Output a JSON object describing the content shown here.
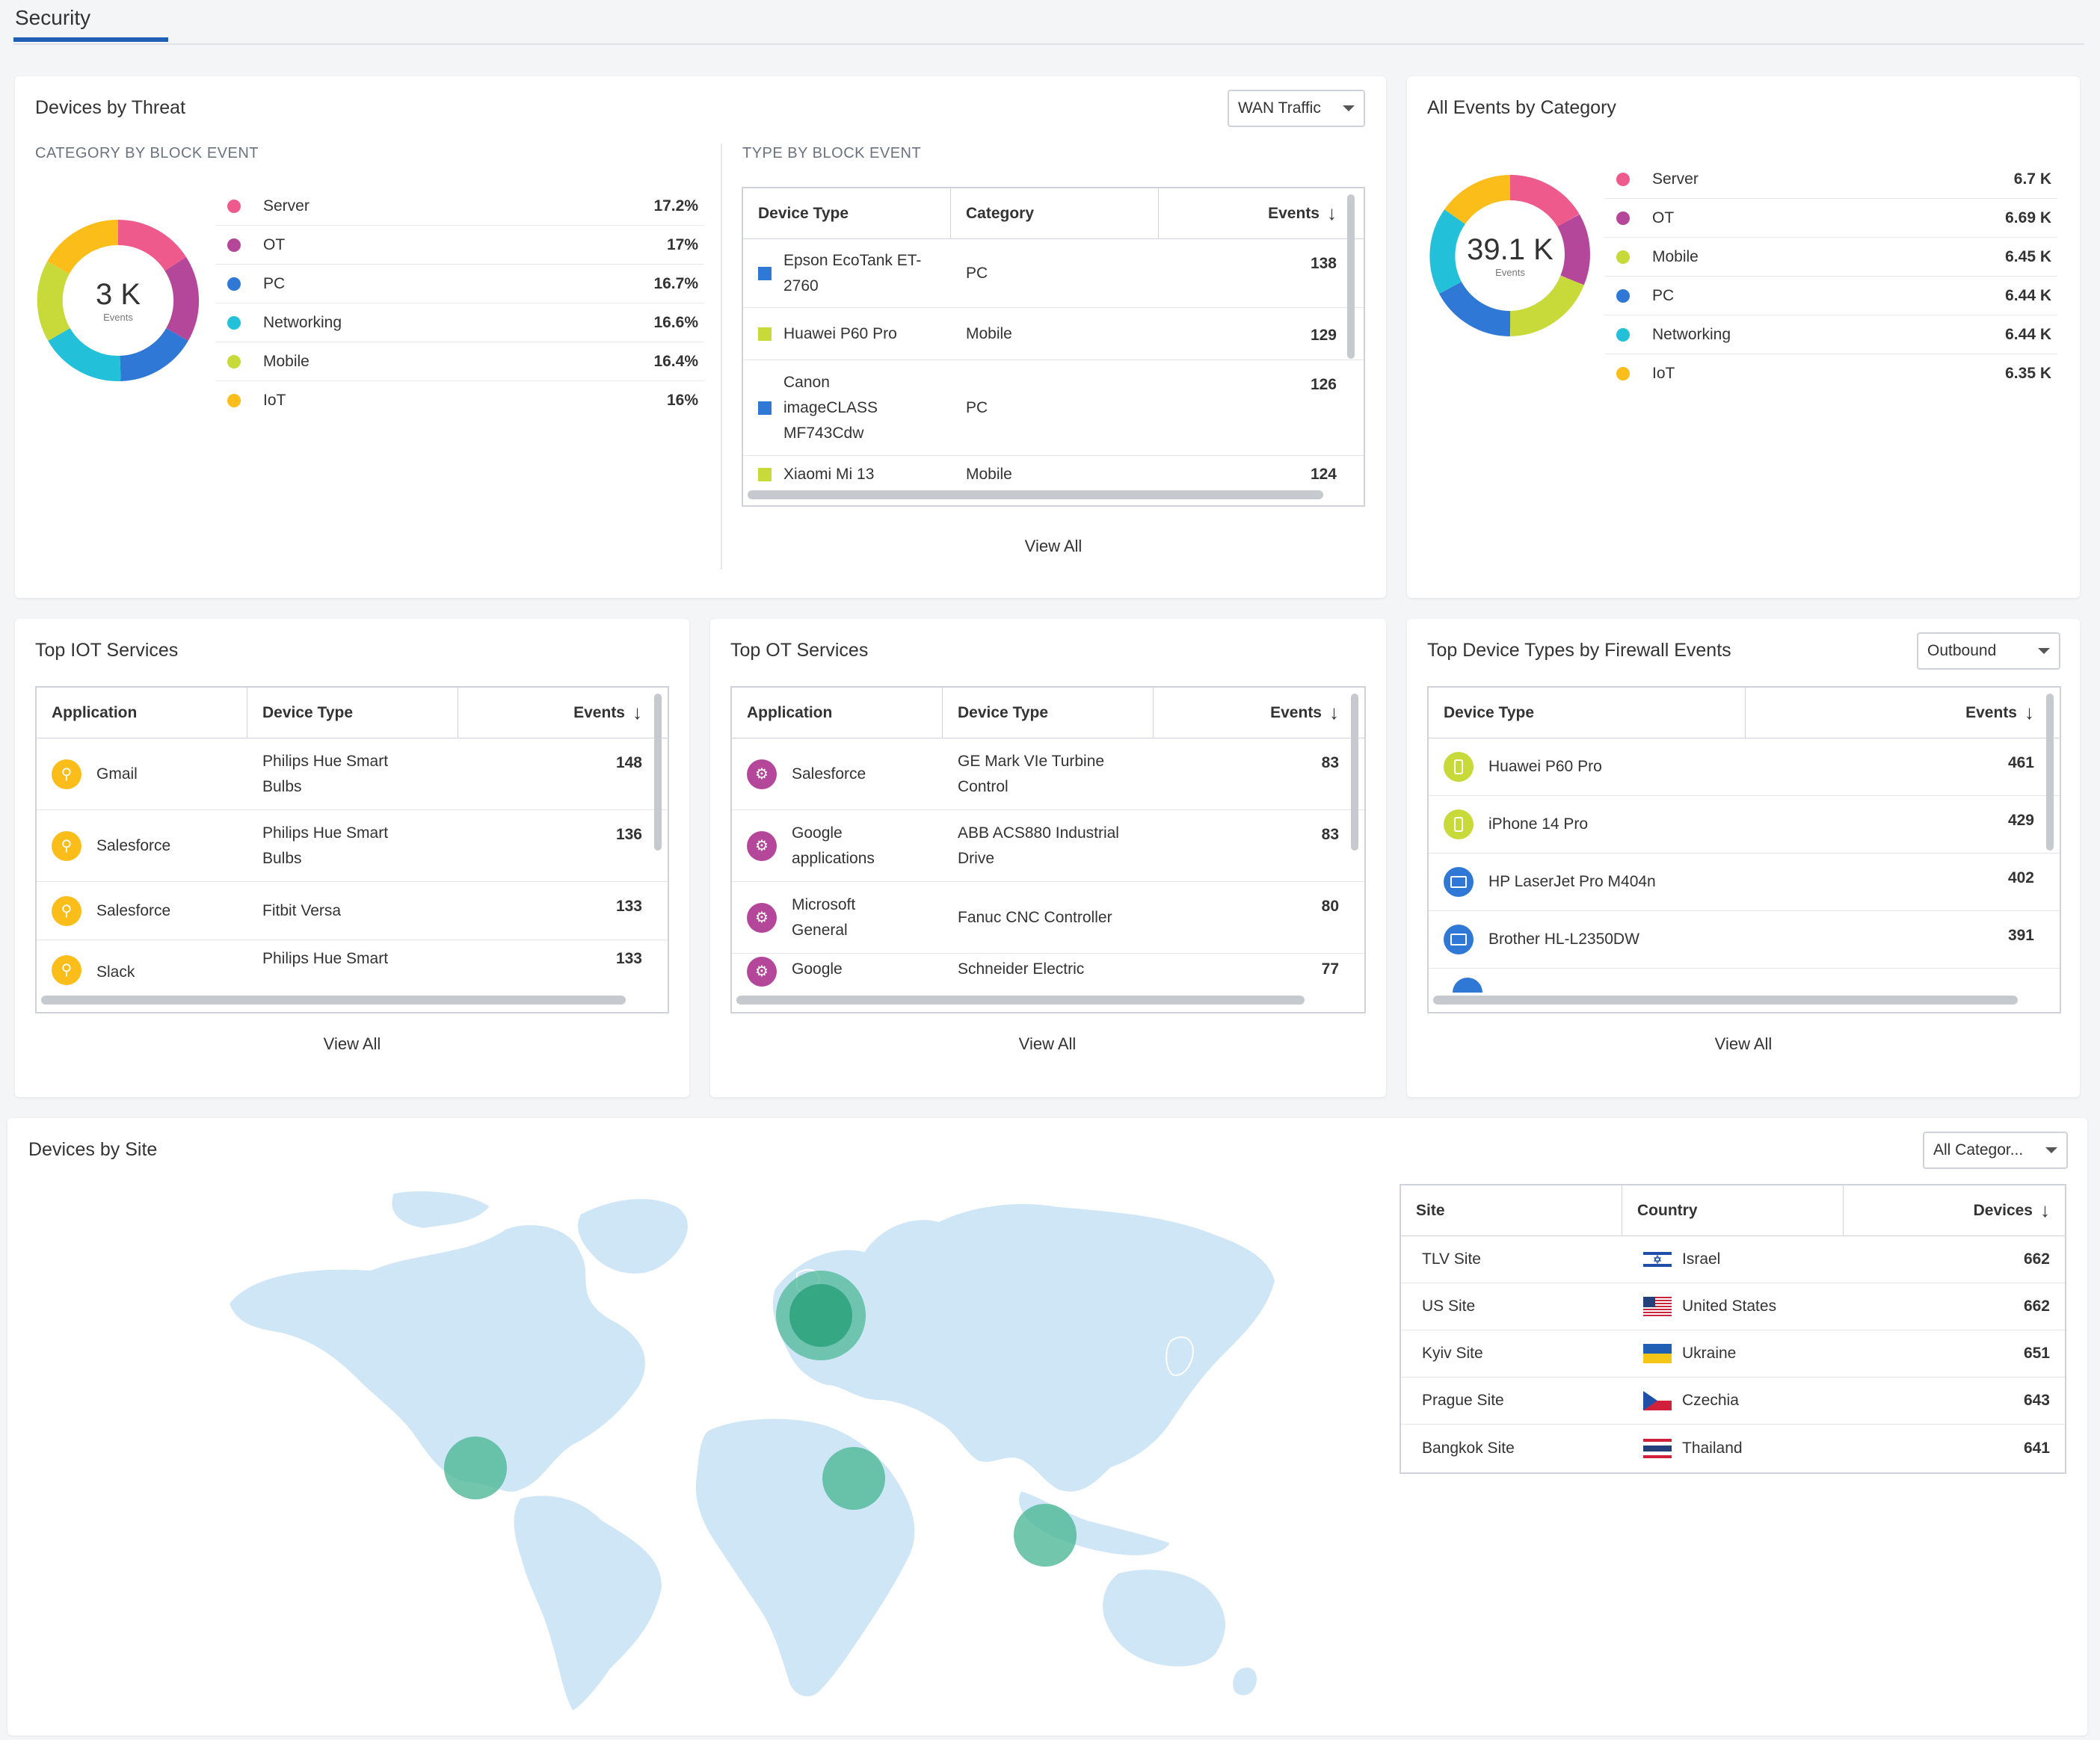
{
  "page": {
    "tab": "Security"
  },
  "devices_by_threat": {
    "title": "Devices by Threat",
    "dropdown": "WAN Traffic",
    "category_heading": "CATEGORY BY BLOCK EVENT",
    "type_heading": "TYPE BY BLOCK EVENT",
    "donut_value": "3 K",
    "donut_caption": "Events",
    "legend": [
      {
        "label": "Server",
        "value": "17.2%",
        "color": "#ee5a8c"
      },
      {
        "label": "OT",
        "value": "17%",
        "color": "#b5479b"
      },
      {
        "label": "PC",
        "value": "16.7%",
        "color": "#2f78d6"
      },
      {
        "label": "Networking",
        "value": "16.6%",
        "color": "#22c1d9"
      },
      {
        "label": "Mobile",
        "value": "16.4%",
        "color": "#c8d93a"
      },
      {
        "label": "IoT",
        "value": "16%",
        "color": "#fbbd1a"
      }
    ],
    "table": {
      "headers": [
        "Device Type",
        "Category",
        "Events"
      ],
      "rows": [
        {
          "device_l1": "Epson EcoTank ET-",
          "device_l2": "2760",
          "device_l3": "",
          "category": "PC",
          "events": "138",
          "color": "#2f78d6"
        },
        {
          "device_l1": "Huawei P60 Pro",
          "device_l2": "",
          "device_l3": "",
          "category": "Mobile",
          "events": "129",
          "color": "#c8d93a"
        },
        {
          "device_l1": "Canon",
          "device_l2": "imageCLASS",
          "device_l3": "MF743Cdw",
          "category": "PC",
          "events": "126",
          "color": "#2f78d6"
        },
        {
          "device_l1": "Xiaomi Mi 13",
          "device_l2": "",
          "device_l3": "",
          "category": "Mobile",
          "events": "124",
          "color": "#c8d93a"
        }
      ]
    },
    "view_all": "View All"
  },
  "all_events": {
    "title": "All Events by Category",
    "donut_value": "39.1 K",
    "donut_caption": "Events",
    "legend": [
      {
        "label": "Server",
        "value": "6.7 K",
        "color": "#ee5a8c"
      },
      {
        "label": "OT",
        "value": "6.69 K",
        "color": "#b5479b"
      },
      {
        "label": "Mobile",
        "value": "6.45 K",
        "color": "#c8d93a"
      },
      {
        "label": "PC",
        "value": "6.44 K",
        "color": "#2f78d6"
      },
      {
        "label": "Networking",
        "value": "6.44 K",
        "color": "#22c1d9"
      },
      {
        "label": "IoT",
        "value": "6.35 K",
        "color": "#fbbd1a"
      }
    ]
  },
  "top_iot": {
    "title": "Top IOT Services",
    "headers": [
      "Application",
      "Device Type",
      "Events"
    ],
    "rows": [
      {
        "app_l1": "Gmail",
        "app_l2": "",
        "device_l1": "Philips Hue Smart",
        "device_l2": "Bulbs",
        "events": "148"
      },
      {
        "app_l1": "Salesforce",
        "app_l2": "",
        "device_l1": "Philips Hue Smart",
        "device_l2": "Bulbs",
        "events": "136"
      },
      {
        "app_l1": "Salesforce",
        "app_l2": "",
        "device_l1": "Fitbit Versa",
        "device_l2": "",
        "events": "133"
      },
      {
        "app_l1": "Slack",
        "app_l2": "",
        "device_l1": "Philips Hue Smart",
        "device_l2": "",
        "events": "133"
      }
    ],
    "view_all": "View All"
  },
  "top_ot": {
    "title": "Top OT Services",
    "headers": [
      "Application",
      "Device Type",
      "Events"
    ],
    "rows": [
      {
        "app_l1": "Salesforce",
        "app_l2": "",
        "device_l1": "GE Mark VIe Turbine",
        "device_l2": "Control",
        "events": "83"
      },
      {
        "app_l1": "Google",
        "app_l2": "applications",
        "device_l1": "ABB ACS880 Industrial",
        "device_l2": "Drive",
        "events": "83"
      },
      {
        "app_l1": "Microsoft",
        "app_l2": "General",
        "device_l1": "Fanuc CNC Controller",
        "device_l2": "",
        "events": "80"
      },
      {
        "app_l1": "Google",
        "app_l2": "",
        "device_l1": "Schneider Electric",
        "device_l2": "",
        "events": "77"
      }
    ],
    "view_all": "View All"
  },
  "top_device_types": {
    "title": "Top Device Types by Firewall Events",
    "dropdown": "Outbound",
    "headers": [
      "Device Type",
      "Events"
    ],
    "rows": [
      {
        "device": "Huawei P60 Pro",
        "events": "461",
        "color": "#c8d93a",
        "icon": "mobile-icon"
      },
      {
        "device": "iPhone 14 Pro",
        "events": "429",
        "color": "#c8d93a",
        "icon": "mobile-icon"
      },
      {
        "device": "HP LaserJet Pro M404n",
        "events": "402",
        "color": "#2f78d6",
        "icon": "monitor-icon"
      },
      {
        "device": "Brother HL-L2350DW",
        "events": "391",
        "color": "#2f78d6",
        "icon": "monitor-icon"
      }
    ],
    "view_all": "View All"
  },
  "devices_by_site": {
    "title": "Devices by Site",
    "dropdown": "All Categor...",
    "headers": [
      "Site",
      "Country",
      "Devices"
    ],
    "rows": [
      {
        "site": "TLV Site",
        "country": "Israel",
        "devices": "662"
      },
      {
        "site": "US Site",
        "country": "United States",
        "devices": "662"
      },
      {
        "site": "Kyiv Site",
        "country": "Ukraine",
        "devices": "651"
      },
      {
        "site": "Prague Site",
        "country": "Czechia",
        "devices": "643"
      },
      {
        "site": "Bangkok Site",
        "country": "Thailand",
        "devices": "641"
      }
    ]
  }
}
